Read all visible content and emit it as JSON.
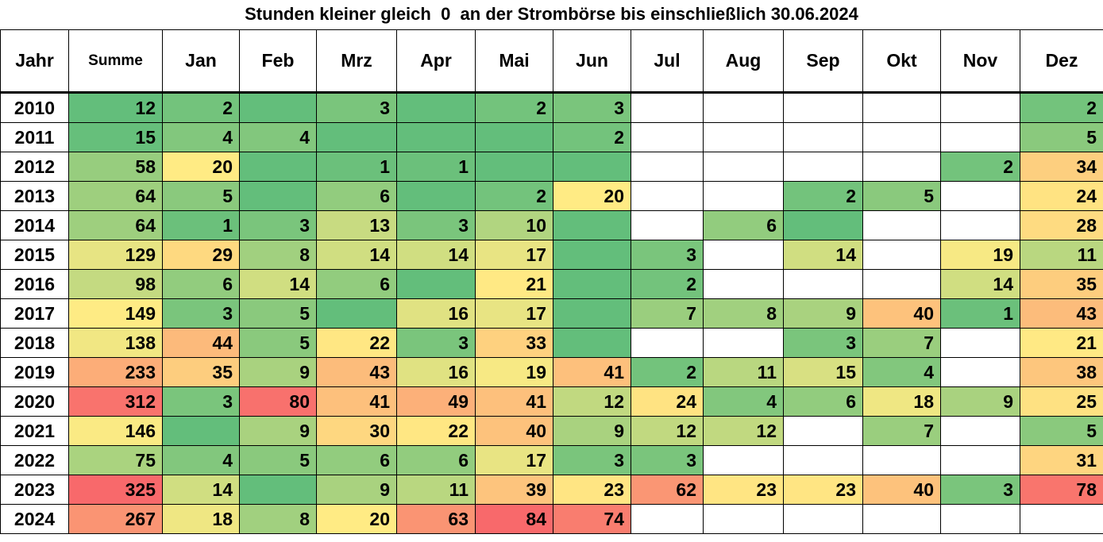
{
  "chart_data": {
    "type": "heatmap",
    "title": "Stunden kleiner gleich  0  an der Strombörse bis einschließlich 30.06.2024",
    "columns": [
      "Jahr",
      "Summe",
      "Jan",
      "Feb",
      "Mrz",
      "Apr",
      "Mai",
      "Jun",
      "Jul",
      "Aug",
      "Sep",
      "Okt",
      "Nov",
      "Dez"
    ],
    "rows": [
      {
        "year": "2010",
        "sum": 12,
        "months": [
          2,
          null,
          3,
          null,
          2,
          3,
          null,
          null,
          null,
          null,
          null,
          2
        ]
      },
      {
        "year": "2011",
        "sum": 15,
        "months": [
          4,
          4,
          null,
          null,
          null,
          2,
          null,
          null,
          null,
          null,
          null,
          5
        ]
      },
      {
        "year": "2012",
        "sum": 58,
        "months": [
          20,
          null,
          1,
          1,
          null,
          null,
          null,
          null,
          null,
          null,
          2,
          34
        ]
      },
      {
        "year": "2013",
        "sum": 64,
        "months": [
          5,
          null,
          6,
          null,
          2,
          20,
          null,
          null,
          2,
          5,
          null,
          24
        ]
      },
      {
        "year": "2014",
        "sum": 64,
        "months": [
          1,
          3,
          13,
          3,
          10,
          null,
          null,
          6,
          null,
          null,
          null,
          28
        ]
      },
      {
        "year": "2015",
        "sum": 129,
        "months": [
          29,
          8,
          14,
          14,
          17,
          null,
          3,
          null,
          14,
          null,
          19,
          11
        ]
      },
      {
        "year": "2016",
        "sum": 98,
        "months": [
          6,
          14,
          6,
          null,
          21,
          null,
          2,
          null,
          null,
          null,
          14,
          35
        ]
      },
      {
        "year": "2017",
        "sum": 149,
        "months": [
          3,
          5,
          null,
          16,
          17,
          null,
          7,
          8,
          9,
          40,
          1,
          43
        ]
      },
      {
        "year": "2018",
        "sum": 138,
        "months": [
          44,
          5,
          22,
          3,
          33,
          null,
          null,
          null,
          3,
          7,
          null,
          21
        ]
      },
      {
        "year": "2019",
        "sum": 233,
        "months": [
          35,
          9,
          43,
          16,
          19,
          41,
          2,
          11,
          15,
          4,
          null,
          38
        ]
      },
      {
        "year": "2020",
        "sum": 312,
        "months": [
          3,
          80,
          41,
          49,
          41,
          12,
          24,
          4,
          6,
          18,
          9,
          25
        ]
      },
      {
        "year": "2021",
        "sum": 146,
        "months": [
          null,
          9,
          30,
          22,
          40,
          9,
          12,
          12,
          null,
          7,
          null,
          5
        ]
      },
      {
        "year": "2022",
        "sum": 75,
        "months": [
          4,
          5,
          6,
          6,
          17,
          3,
          3,
          null,
          null,
          null,
          null,
          31
        ]
      },
      {
        "year": "2023",
        "sum": 325,
        "months": [
          14,
          null,
          9,
          11,
          39,
          23,
          62,
          23,
          23,
          40,
          3,
          78
        ]
      },
      {
        "year": "2024",
        "sum": 267,
        "months": [
          18,
          8,
          20,
          63,
          84,
          74,
          null,
          null,
          null,
          null,
          null,
          null
        ]
      }
    ],
    "colors": {
      "low": "#63be7b",
      "mid": "#ffeb84",
      "high": "#f8696b",
      "empty": "#ffffff"
    }
  }
}
